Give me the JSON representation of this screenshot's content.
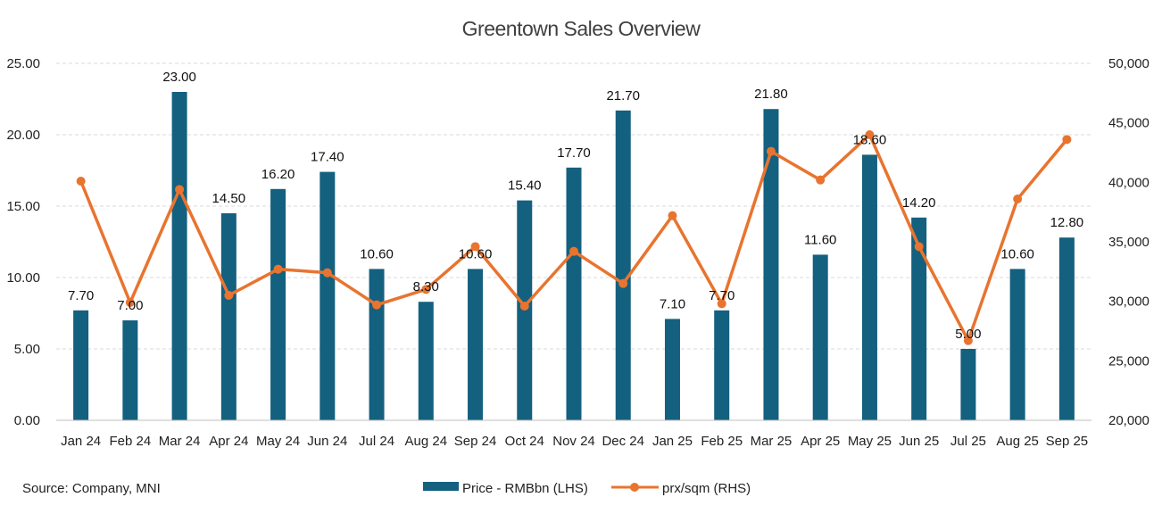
{
  "chart_data": {
    "type": "bar+line",
    "title": "Greentown Sales Overview",
    "categories": [
      "Jan 24",
      "Feb 24",
      "Mar 24",
      "Apr 24",
      "May 24",
      "Jun 24",
      "Jul 24",
      "Aug 24",
      "Sep 24",
      "Oct 24",
      "Nov 24",
      "Dec 24",
      "Jan 25",
      "Feb 25",
      "Mar 25",
      "Apr 25",
      "May 25",
      "Jun 25",
      "Jul 25",
      "Aug 25",
      "Sep 25"
    ],
    "series": [
      {
        "name": "Price - RMBbn (LHS)",
        "type": "bar",
        "axis": "left",
        "color": "#14607f",
        "values": [
          7.7,
          7.0,
          23.0,
          14.5,
          16.2,
          17.4,
          10.6,
          8.3,
          10.6,
          15.4,
          17.7,
          21.7,
          7.1,
          7.7,
          21.8,
          11.6,
          18.6,
          14.2,
          5.0,
          10.6,
          12.8
        ],
        "labels": [
          "7.70",
          "7.00",
          "23.00",
          "14.50",
          "16.20",
          "17.40",
          "10.60",
          "8.30",
          "10.60",
          "15.40",
          "17.70",
          "21.70",
          "7.10",
          "7.70",
          "21.80",
          "11.60",
          "18.60",
          "14.20",
          "5.00",
          "10.60",
          "12.80"
        ]
      },
      {
        "name": "prx/sqm (RHS)",
        "type": "line",
        "axis": "right",
        "color": "#e8742f",
        "values": [
          40100,
          29900,
          39400,
          30500,
          32700,
          32400,
          29700,
          31000,
          34600,
          29600,
          34200,
          31500,
          37200,
          29800,
          42600,
          40200,
          44000,
          34600,
          26700,
          38600,
          43600
        ]
      }
    ],
    "y_left": {
      "min": 0,
      "max": 25,
      "ticks": [
        "0.00",
        "5.00",
        "10.00",
        "15.00",
        "20.00",
        "25.00"
      ]
    },
    "y_right": {
      "min": 20000,
      "max": 50000,
      "ticks": [
        "20,000",
        "25,000",
        "30,000",
        "35,000",
        "40,000",
        "45,000",
        "50,000"
      ]
    },
    "grid": true,
    "legend_position": "bottom"
  },
  "source": "Source: Company, MNI"
}
